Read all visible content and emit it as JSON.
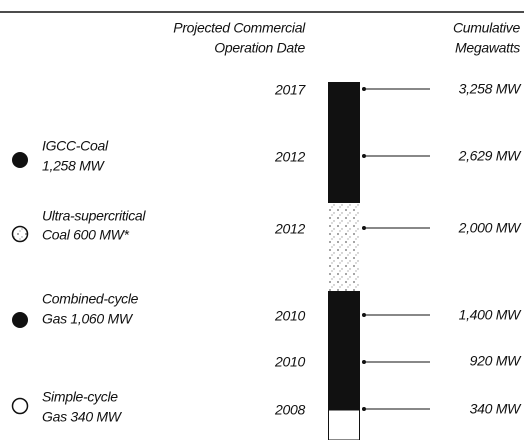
{
  "headers": {
    "date": [
      "Projected Commercial",
      "Operation Date"
    ],
    "mw": [
      "Cumulative",
      "Megawatts"
    ]
  },
  "milestones": [
    {
      "date": "2017",
      "mw": "3,258 MW"
    },
    {
      "date": "2012",
      "mw": "2,629 MW"
    },
    {
      "date": "2012",
      "mw": "2,000 MW"
    },
    {
      "date": "2010",
      "mw": "1,400 MW"
    },
    {
      "date": "2010",
      "mw": "920 MW"
    },
    {
      "date": "2008",
      "mw": "340 MW"
    }
  ],
  "legend": [
    {
      "lines": [
        "IGCC-Coal",
        "1,258 MW"
      ]
    },
    {
      "lines": [
        "Ultra-supercritical",
        "Coal 600 MW*"
      ]
    },
    {
      "lines": [
        "Combined-cycle",
        "Gas 1,060 MW"
      ]
    },
    {
      "lines": [
        "Simple-cycle",
        "Gas 340 MW"
      ]
    }
  ]
}
